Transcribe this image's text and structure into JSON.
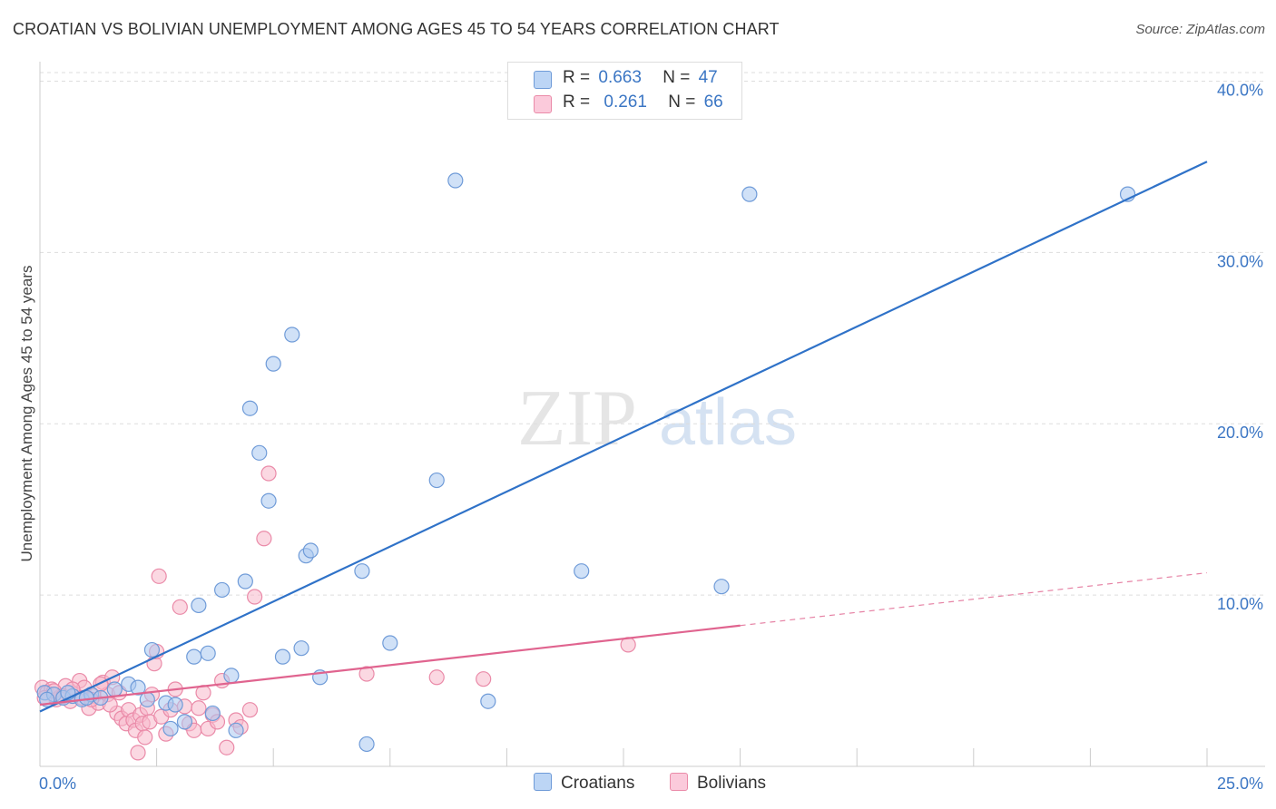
{
  "title": "CROATIAN VS BOLIVIAN UNEMPLOYMENT AMONG AGES 45 TO 54 YEARS CORRELATION CHART",
  "source": "Source: ZipAtlas.com",
  "watermark": {
    "zip": "ZIP",
    "atlas": "atlas"
  },
  "legend": {
    "rows": [
      {
        "r_label": "R =",
        "r_value": "0.663",
        "n_label": "N =",
        "n_value": "47"
      },
      {
        "r_label": "R =",
        "r_value": "0.261",
        "n_label": "N =",
        "n_value": "66"
      }
    ]
  },
  "bottom_legend": {
    "croatians": "Croatians",
    "bolivians": "Bolivians"
  },
  "chart_data": {
    "type": "scatter",
    "title": "CROATIAN VS BOLIVIAN UNEMPLOYMENT AMONG AGES 45 TO 54 YEARS CORRELATION CHART",
    "xlabel": "",
    "ylabel": "Unemployment Among Ages 45 to 54 years",
    "xlim": [
      0,
      25
    ],
    "ylim": [
      0,
      40.5
    ],
    "x_tick_labels": [
      "0.0%",
      "25.0%"
    ],
    "y_ticks": [
      10,
      20,
      30,
      40
    ],
    "y_tick_labels": [
      "10.0%",
      "20.0%",
      "30.0%",
      "40.0%"
    ],
    "grid": true,
    "legend_position": "top-center",
    "colors": {
      "croatians_fill": "#a9c8f0",
      "croatians_stroke": "#6f9bd8",
      "croatians_line": "#2f72c8",
      "bolivians_fill": "#f7b8cb",
      "bolivians_stroke": "#ea8aa8",
      "bolivians_line": "#e0648f",
      "tick_label": "#3b76c4",
      "grid": "#dddddd"
    },
    "series": [
      {
        "name": "Croatians",
        "points": [
          [
            0.1,
            4.3
          ],
          [
            0.3,
            4.2
          ],
          [
            0.5,
            4.0
          ],
          [
            0.7,
            4.1
          ],
          [
            0.9,
            3.9
          ],
          [
            1.1,
            4.2
          ],
          [
            1.3,
            4.0
          ],
          [
            1.6,
            4.5
          ],
          [
            1.9,
            4.8
          ],
          [
            2.1,
            4.6
          ],
          [
            2.3,
            3.9
          ],
          [
            2.4,
            6.8
          ],
          [
            2.7,
            3.7
          ],
          [
            2.8,
            2.2
          ],
          [
            2.9,
            3.6
          ],
          [
            3.1,
            2.6
          ],
          [
            3.3,
            6.4
          ],
          [
            3.4,
            9.4
          ],
          [
            3.6,
            6.6
          ],
          [
            3.7,
            3.1
          ],
          [
            3.9,
            10.3
          ],
          [
            4.1,
            5.3
          ],
          [
            4.2,
            2.1
          ],
          [
            4.4,
            10.8
          ],
          [
            4.5,
            20.9
          ],
          [
            4.7,
            18.3
          ],
          [
            4.9,
            15.5
          ],
          [
            5.0,
            23.5
          ],
          [
            5.2,
            6.4
          ],
          [
            5.4,
            25.2
          ],
          [
            5.6,
            6.9
          ],
          [
            5.7,
            12.3
          ],
          [
            5.8,
            12.6
          ],
          [
            6.0,
            5.2
          ],
          [
            6.9,
            11.4
          ],
          [
            7.0,
            1.3
          ],
          [
            7.5,
            7.2
          ],
          [
            8.5,
            16.7
          ],
          [
            8.9,
            34.2
          ],
          [
            9.6,
            3.8
          ],
          [
            11.6,
            11.4
          ],
          [
            14.6,
            10.5
          ],
          [
            15.2,
            33.4
          ],
          [
            23.3,
            33.4
          ],
          [
            0.15,
            3.9
          ],
          [
            0.6,
            4.3
          ],
          [
            1.0,
            4.0
          ]
        ]
      },
      {
        "name": "Bolivians",
        "points": [
          [
            0.05,
            4.6
          ],
          [
            0.15,
            4.3
          ],
          [
            0.25,
            4.5
          ],
          [
            0.35,
            3.9
          ],
          [
            0.45,
            4.1
          ],
          [
            0.55,
            4.7
          ],
          [
            0.65,
            3.8
          ],
          [
            0.75,
            4.2
          ],
          [
            0.85,
            5.0
          ],
          [
            0.95,
            4.6
          ],
          [
            1.05,
            3.4
          ],
          [
            1.15,
            4.1
          ],
          [
            1.25,
            3.7
          ],
          [
            1.35,
            4.9
          ],
          [
            1.45,
            4.2
          ],
          [
            1.55,
            5.2
          ],
          [
            1.65,
            3.1
          ],
          [
            1.75,
            2.8
          ],
          [
            1.85,
            2.5
          ],
          [
            1.9,
            3.3
          ],
          [
            2.0,
            2.7
          ],
          [
            2.05,
            2.1
          ],
          [
            2.1,
            0.8
          ],
          [
            2.15,
            3.0
          ],
          [
            2.2,
            2.5
          ],
          [
            2.25,
            1.7
          ],
          [
            2.3,
            3.4
          ],
          [
            2.35,
            2.6
          ],
          [
            2.4,
            4.2
          ],
          [
            2.45,
            6.0
          ],
          [
            2.5,
            6.7
          ],
          [
            2.55,
            11.1
          ],
          [
            2.6,
            2.9
          ],
          [
            2.7,
            1.9
          ],
          [
            2.8,
            3.3
          ],
          [
            2.9,
            4.5
          ],
          [
            3.0,
            9.3
          ],
          [
            3.1,
            3.5
          ],
          [
            3.2,
            2.5
          ],
          [
            3.3,
            2.1
          ],
          [
            3.4,
            3.4
          ],
          [
            3.5,
            4.3
          ],
          [
            3.6,
            2.2
          ],
          [
            3.7,
            3.0
          ],
          [
            3.8,
            2.6
          ],
          [
            3.9,
            5.0
          ],
          [
            4.0,
            1.1
          ],
          [
            4.2,
            2.7
          ],
          [
            4.3,
            2.3
          ],
          [
            4.5,
            3.3
          ],
          [
            4.6,
            9.9
          ],
          [
            4.8,
            13.3
          ],
          [
            4.9,
            17.1
          ],
          [
            7.0,
            5.4
          ],
          [
            8.5,
            5.2
          ],
          [
            9.5,
            5.1
          ],
          [
            12.6,
            7.1
          ],
          [
            0.1,
            4.0
          ],
          [
            0.3,
            4.4
          ],
          [
            0.5,
            4.1
          ],
          [
            0.7,
            4.5
          ],
          [
            0.9,
            4.0
          ],
          [
            1.1,
            3.9
          ],
          [
            1.3,
            4.8
          ],
          [
            1.5,
            3.6
          ],
          [
            1.7,
            4.3
          ]
        ]
      }
    ],
    "trendlines": [
      {
        "name": "Croatians",
        "from": [
          0,
          3.2
        ],
        "to": [
          25,
          35.3
        ],
        "dashed_from": null
      },
      {
        "name": "Bolivians",
        "from": [
          0,
          3.6
        ],
        "to": [
          25,
          11.3
        ],
        "dashed_from": 15
      }
    ]
  }
}
